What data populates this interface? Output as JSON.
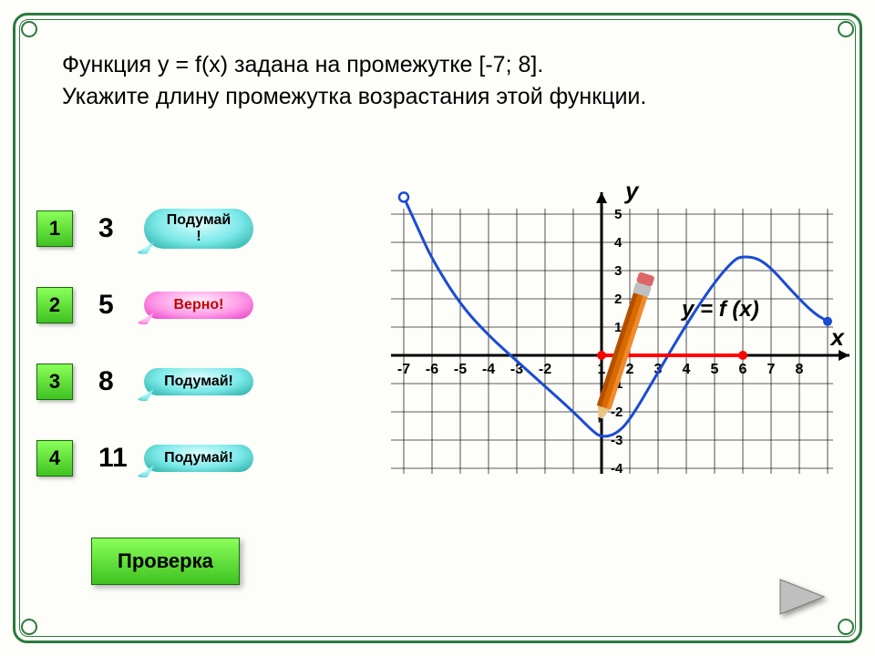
{
  "question_line1": "Функция   y = f(x) задана на промежутке [-7; 8].",
  "question_line2": "Укажите длину промежутка возрастания этой функции.",
  "answers": [
    {
      "num": "1",
      "value": "3",
      "feedback": "Подумай!",
      "bubble_type": "teal",
      "bubble_two_line": true
    },
    {
      "num": "2",
      "value": "5",
      "feedback": "Верно!",
      "bubble_type": "pink",
      "bubble_two_line": false
    },
    {
      "num": "3",
      "value": "8",
      "feedback": "Подумай!",
      "bubble_type": "teal",
      "bubble_two_line": false
    },
    {
      "num": "4",
      "value": "11",
      "feedback": "Подумай!",
      "bubble_type": "teal",
      "bubble_two_line": false
    }
  ],
  "check_label": "Проверка",
  "graph": {
    "x_ticks": [
      "-7",
      "-6",
      "-5",
      "-4",
      "-3",
      "-2",
      "",
      "1",
      "2",
      "3",
      "4",
      "5",
      "6",
      "7",
      "8"
    ],
    "y_ticks_pos": [
      "1",
      "2",
      "3",
      "4",
      "5"
    ],
    "y_ticks_neg": [
      "-1",
      "-2",
      "-3",
      "-4"
    ],
    "y_axis_label": "y",
    "x_axis_label": "x",
    "func_label": "y = f (x)",
    "curve_color": "#1a4bd6",
    "highlight_color": "#ff0000",
    "grid_color": "#000000",
    "bg_color": "#ffffff",
    "pencil_body": "#d96a00",
    "pencil_metal": "#c0c0c0",
    "pencil_tip": "#1a1a1a",
    "cell": 31,
    "origin_x": 270,
    "origin_y": 190,
    "xmin": -7,
    "xmax": 8,
    "ymin": -4,
    "ymax": 5,
    "curve_points": [
      [
        -7,
        5.6
      ],
      [
        -6.5,
        4.5
      ],
      [
        -6,
        3.4
      ],
      [
        -5,
        1.8
      ],
      [
        -4,
        0.7
      ],
      [
        -3,
        -0.2
      ],
      [
        -2,
        -1.1
      ],
      [
        -1,
        -2.0
      ],
      [
        -0.3,
        -2.7
      ],
      [
        0,
        -2.9
      ],
      [
        0.5,
        -2.8
      ],
      [
        1,
        -2.3
      ],
      [
        2,
        -0.6
      ],
      [
        3,
        1.1
      ],
      [
        4,
        2.6
      ],
      [
        4.7,
        3.4
      ],
      [
        5,
        3.5
      ],
      [
        5.5,
        3.45
      ],
      [
        6,
        3.1
      ],
      [
        6.8,
        2.2
      ],
      [
        7.5,
        1.5
      ],
      [
        8,
        1.2
      ]
    ],
    "open_point": [
      -7,
      5.6
    ],
    "closed_point": [
      8,
      1.2
    ],
    "highlight_from": 0,
    "highlight_to": 5
  }
}
